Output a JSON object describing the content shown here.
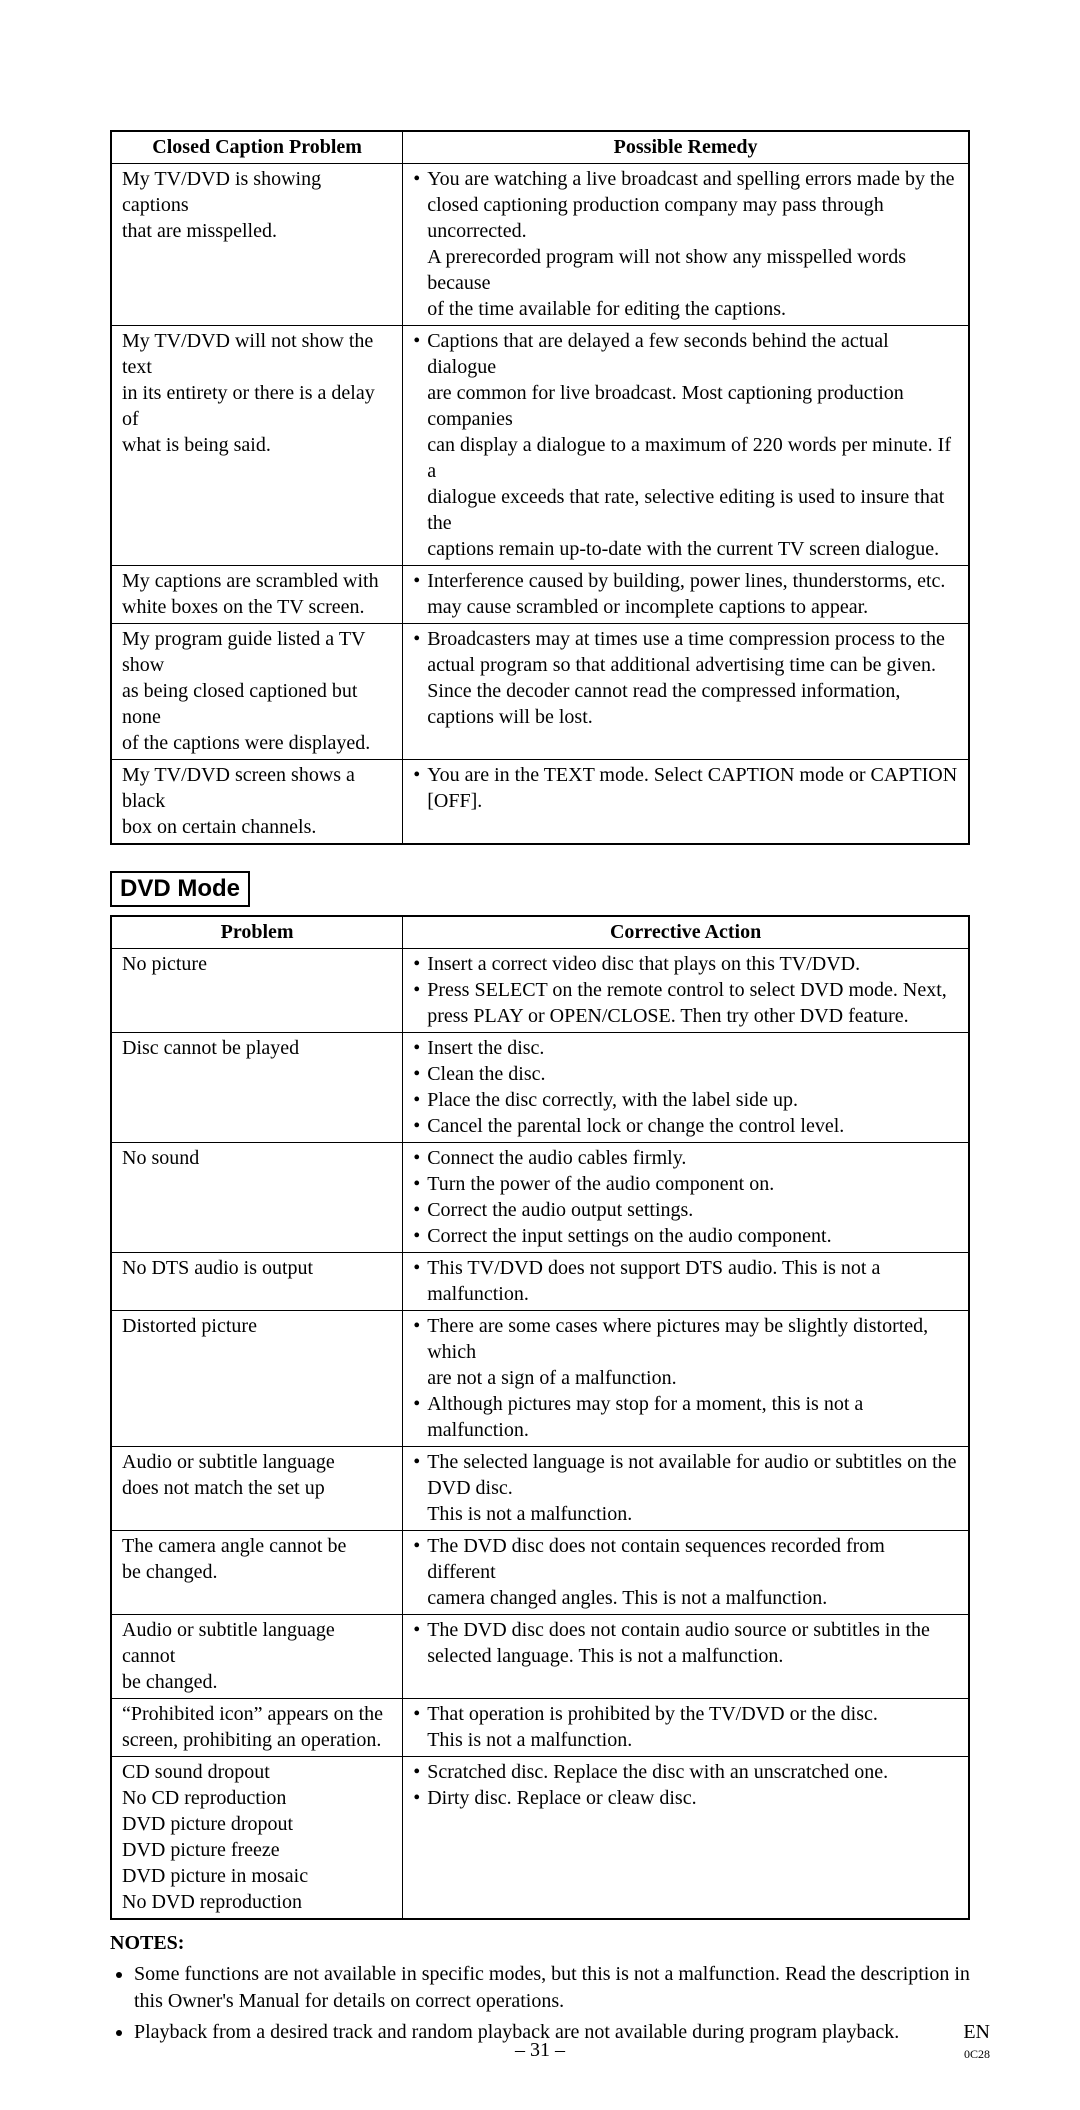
{
  "font": {
    "body_family": "Times New Roman",
    "heading_family": "Arial",
    "body_size_pt": 15,
    "heading_size_pt": 18
  },
  "colors": {
    "text": "#000000",
    "background": "#ffffff",
    "border": "#000000"
  },
  "cc_table": {
    "type": "table",
    "column_widths": [
      0.34,
      0.66
    ],
    "headers": [
      "Closed Caption Problem",
      "Possible Remedy"
    ],
    "rows": [
      {
        "problem": [
          "My TV/DVD is showing captions",
          "that are misspelled."
        ],
        "remedy": [
          {
            "bullet": true,
            "text": "You are watching a live broadcast and spelling errors made by the"
          },
          {
            "bullet": false,
            "text": "closed captioning production company may pass through uncorrected."
          },
          {
            "bullet": false,
            "text": "A prerecorded program will not show any misspelled words because"
          },
          {
            "bullet": false,
            "text": "of the time available for editing the captions."
          }
        ]
      },
      {
        "problem": [
          "My TV/DVD will not show the text",
          "in its entirety or there is a delay of",
          "what is being said."
        ],
        "remedy": [
          {
            "bullet": true,
            "text": "Captions that are delayed a few seconds behind the actual dialogue"
          },
          {
            "bullet": false,
            "text": "are common for live broadcast. Most captioning production companies"
          },
          {
            "bullet": false,
            "text": "can display a dialogue to a maximum of 220 words per minute. If a"
          },
          {
            "bullet": false,
            "text": "dialogue exceeds that rate, selective editing is used to insure that the"
          },
          {
            "bullet": false,
            "text": "captions remain up-to-date with the current TV screen dialogue."
          }
        ]
      },
      {
        "problem": [
          "My captions are scrambled with",
          "white boxes on the TV screen."
        ],
        "remedy": [
          {
            "bullet": true,
            "text": "Interference caused by building, power lines, thunderstorms, etc."
          },
          {
            "bullet": false,
            "text": "may cause scrambled or incomplete captions to appear."
          }
        ]
      },
      {
        "problem": [
          "My program guide listed a TV show",
          "as being closed captioned but none",
          "of the captions were displayed."
        ],
        "remedy": [
          {
            "bullet": true,
            "text": "Broadcasters may at times use a time compression process to the"
          },
          {
            "bullet": false,
            "text": "actual program so that additional advertising time can be given."
          },
          {
            "bullet": false,
            "text": "Since the decoder cannot read the compressed information,"
          },
          {
            "bullet": false,
            "text": "captions will be lost."
          }
        ]
      },
      {
        "problem": [
          "My TV/DVD screen shows a black",
          "box on certain channels."
        ],
        "remedy": [
          {
            "bullet": true,
            "text": "You are in the TEXT mode. Select CAPTION mode or CAPTION"
          },
          {
            "bullet": false,
            "text": "[OFF]."
          }
        ]
      }
    ]
  },
  "dvd_section_label": "DVD Mode",
  "dvd_table": {
    "type": "table",
    "column_widths": [
      0.34,
      0.66
    ],
    "headers": [
      "Problem",
      "Corrective Action"
    ],
    "rows": [
      {
        "problem": [
          "No picture"
        ],
        "remedy": [
          {
            "bullet": true,
            "text": "Insert a correct video disc that plays on this TV/DVD."
          },
          {
            "bullet": true,
            "text": "Press SELECT on the remote control to select DVD mode. Next,"
          },
          {
            "bullet": false,
            "text": "press PLAY or OPEN/CLOSE. Then try other DVD feature."
          }
        ]
      },
      {
        "problem": [
          "Disc cannot be played"
        ],
        "remedy": [
          {
            "bullet": true,
            "text": "Insert the disc."
          },
          {
            "bullet": true,
            "text": "Clean the disc."
          },
          {
            "bullet": true,
            "text": "Place the disc correctly, with the label side up."
          },
          {
            "bullet": true,
            "text": "Cancel the parental lock or change the control level."
          }
        ]
      },
      {
        "problem": [
          "No sound"
        ],
        "remedy": [
          {
            "bullet": true,
            "text": "Connect the audio cables firmly."
          },
          {
            "bullet": true,
            "text": "Turn the power of the audio component on."
          },
          {
            "bullet": true,
            "text": "Correct the audio output settings."
          },
          {
            "bullet": true,
            "text": "Correct the input settings on the audio component."
          }
        ]
      },
      {
        "problem": [
          "No DTS audio is output"
        ],
        "remedy": [
          {
            "bullet": true,
            "text": "This TV/DVD does not support DTS audio. This is not a malfunction."
          }
        ]
      },
      {
        "problem": [
          "Distorted picture"
        ],
        "remedy": [
          {
            "bullet": true,
            "text": "There are some cases where pictures may be slightly distorted, which"
          },
          {
            "bullet": false,
            "text": "are not a sign of a malfunction."
          },
          {
            "bullet": true,
            "text": "Although pictures may stop for a moment, this is not a malfunction."
          }
        ]
      },
      {
        "problem": [
          "Audio or subtitle language",
          "does not match the set up"
        ],
        "remedy": [
          {
            "bullet": true,
            "text": "The selected language is not available for audio or subtitles on the"
          },
          {
            "bullet": false,
            "text": "DVD disc."
          },
          {
            "bullet": false,
            "text": "This is not a malfunction."
          }
        ]
      },
      {
        "problem": [
          "The camera angle cannot be",
          "be changed."
        ],
        "remedy": [
          {
            "bullet": true,
            "text": "The DVD disc does not contain sequences recorded from different"
          },
          {
            "bullet": false,
            "text": "camera changed angles. This is not a malfunction."
          }
        ]
      },
      {
        "problem": [
          "Audio or subtitle language cannot",
          "be changed."
        ],
        "remedy": [
          {
            "bullet": true,
            "text": "The DVD disc does not contain audio source or subtitles in the"
          },
          {
            "bullet": false,
            "text": "selected language. This is not a malfunction."
          }
        ]
      },
      {
        "problem": [
          "“Prohibited icon” appears on the",
          "screen, prohibiting an operation."
        ],
        "remedy": [
          {
            "bullet": true,
            "text": "That operation is prohibited by the TV/DVD or the disc."
          },
          {
            "bullet": false,
            "text": "This is not a malfunction."
          }
        ]
      },
      {
        "problem": [
          "CD sound dropout",
          "No CD reproduction",
          "DVD picture dropout",
          "DVD picture freeze",
          "DVD picture in mosaic",
          "No DVD reproduction"
        ],
        "remedy": [
          {
            "bullet": true,
            "text": "Scratched disc. Replace the disc with an unscratched one."
          },
          {
            "bullet": true,
            "text": "Dirty disc. Replace or cleaw disc."
          }
        ]
      }
    ]
  },
  "notes": {
    "title": "NOTES:",
    "items": [
      "Some functions are not available in specific modes, but this is not a malfunction. Read the description in this Owner's Manual for details on correct operations.",
      "Playback from a desired track and random playback are not available during program playback."
    ]
  },
  "footer": {
    "page": "– 31 –",
    "lang": "EN",
    "code": "0C28"
  }
}
